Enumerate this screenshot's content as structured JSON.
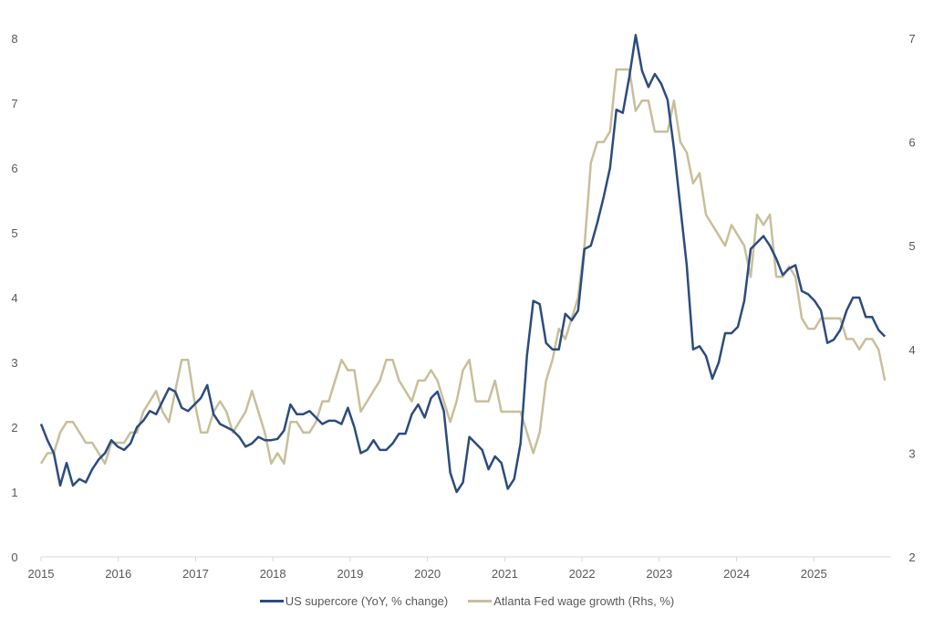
{
  "chart_data": {
    "type": "line",
    "title": "",
    "xlabel": "",
    "ylabel": "",
    "x_ticks": [
      "2015",
      "2016",
      "2017",
      "2018",
      "2019",
      "2020",
      "2021",
      "2022",
      "2023",
      "2024",
      "2025"
    ],
    "xlim": [
      2015,
      2026
    ],
    "x_start": 2015.0,
    "x_end": 2025.92,
    "ylim_left": [
      0,
      8
    ],
    "ylim_right": [
      2,
      7
    ],
    "y_ticks_left": [
      "0",
      "1",
      "2",
      "3",
      "4",
      "5",
      "6",
      "7",
      "8"
    ],
    "y_ticks_right": [
      "2",
      "3",
      "4",
      "5",
      "6",
      "7"
    ],
    "grid": false,
    "legend_position": "bottom",
    "series": [
      {
        "name": "US supercore (YoY, % change)",
        "axis": "left",
        "color": "#2B4C7E",
        "values": [
          2.05,
          1.8,
          1.6,
          1.1,
          1.45,
          1.1,
          1.2,
          1.15,
          1.35,
          1.5,
          1.6,
          1.8,
          1.7,
          1.65,
          1.75,
          2.0,
          2.1,
          2.25,
          2.2,
          2.4,
          2.6,
          2.55,
          2.3,
          2.25,
          2.35,
          2.45,
          2.65,
          2.2,
          2.05,
          2.0,
          1.95,
          1.85,
          1.7,
          1.75,
          1.85,
          1.8,
          1.8,
          1.82,
          1.95,
          2.35,
          2.2,
          2.2,
          2.25,
          2.15,
          2.05,
          2.1,
          2.1,
          2.05,
          2.3,
          2.0,
          1.6,
          1.65,
          1.8,
          1.65,
          1.65,
          1.75,
          1.9,
          1.9,
          2.2,
          2.35,
          2.15,
          2.45,
          2.55,
          2.25,
          1.3,
          1.0,
          1.15,
          1.85,
          1.75,
          1.65,
          1.35,
          1.55,
          1.45,
          1.05,
          1.2,
          1.75,
          3.1,
          3.95,
          3.9,
          3.3,
          3.2,
          3.2,
          3.75,
          3.65,
          3.8,
          4.75,
          4.8,
          5.15,
          5.55,
          6.0,
          6.9,
          6.85,
          7.4,
          8.05,
          7.5,
          7.25,
          7.45,
          7.3,
          7.05,
          6.3,
          5.4,
          4.5,
          3.2,
          3.25,
          3.1,
          2.75,
          3.0,
          3.45,
          3.45,
          3.55,
          3.95,
          4.75,
          4.85,
          4.95,
          4.8,
          4.6,
          4.35,
          4.45,
          4.5,
          4.1,
          4.05,
          3.95,
          3.8,
          3.3,
          3.35,
          3.5,
          3.8,
          4.0,
          4.0,
          3.7,
          3.7,
          3.5,
          3.4
        ]
      },
      {
        "name": "Atlanta Fed wage growth (Rhs, %)",
        "axis": "right",
        "color": "#C8BF9A",
        "values": [
          2.9,
          3.0,
          3.0,
          3.2,
          3.3,
          3.3,
          3.2,
          3.1,
          3.1,
          3.0,
          2.9,
          3.1,
          3.1,
          3.1,
          3.2,
          3.2,
          3.4,
          3.5,
          3.6,
          3.4,
          3.3,
          3.6,
          3.9,
          3.9,
          3.5,
          3.2,
          3.2,
          3.4,
          3.5,
          3.4,
          3.2,
          3.3,
          3.4,
          3.6,
          3.4,
          3.2,
          2.9,
          3.0,
          2.9,
          3.3,
          3.3,
          3.2,
          3.2,
          3.3,
          3.5,
          3.5,
          3.7,
          3.9,
          3.8,
          3.8,
          3.4,
          3.5,
          3.6,
          3.7,
          3.9,
          3.9,
          3.7,
          3.6,
          3.5,
          3.7,
          3.7,
          3.8,
          3.7,
          3.5,
          3.3,
          3.5,
          3.8,
          3.9,
          3.5,
          3.5,
          3.5,
          3.7,
          3.4,
          3.4,
          3.4,
          3.4,
          3.2,
          3.0,
          3.2,
          3.7,
          3.9,
          4.2,
          4.1,
          4.3,
          4.5,
          5.0,
          5.8,
          6.0,
          6.0,
          6.1,
          6.7,
          6.7,
          6.7,
          6.3,
          6.4,
          6.4,
          6.1,
          6.1,
          6.1,
          6.4,
          6.0,
          5.9,
          5.6,
          5.7,
          5.3,
          5.2,
          5.1,
          5.0,
          5.2,
          5.1,
          5.0,
          4.7,
          5.3,
          5.2,
          5.3,
          4.7,
          4.7,
          4.8,
          4.7,
          4.3,
          4.2,
          4.2,
          4.3,
          4.3,
          4.3,
          4.3,
          4.1,
          4.1,
          4.0,
          4.1,
          4.1,
          4.0,
          3.7
        ]
      }
    ]
  }
}
